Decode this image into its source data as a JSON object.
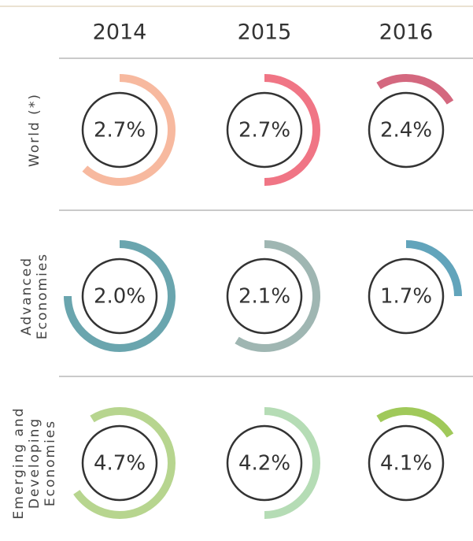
{
  "columns": [
    "2014",
    "2015",
    "2016"
  ],
  "rows": [
    {
      "label": [
        "World (*)"
      ],
      "cells": [
        "2.7%",
        "2.7%",
        "2.4%"
      ]
    },
    {
      "label": [
        "Advanced",
        "Economies"
      ],
      "cells": [
        "2.0%",
        "2.1%",
        "1.7%"
      ]
    },
    {
      "label": [
        "Emerging and",
        "Developing",
        "Economies"
      ],
      "cells": [
        "4.7%",
        "4.2%",
        "4.1%"
      ]
    }
  ]
}
